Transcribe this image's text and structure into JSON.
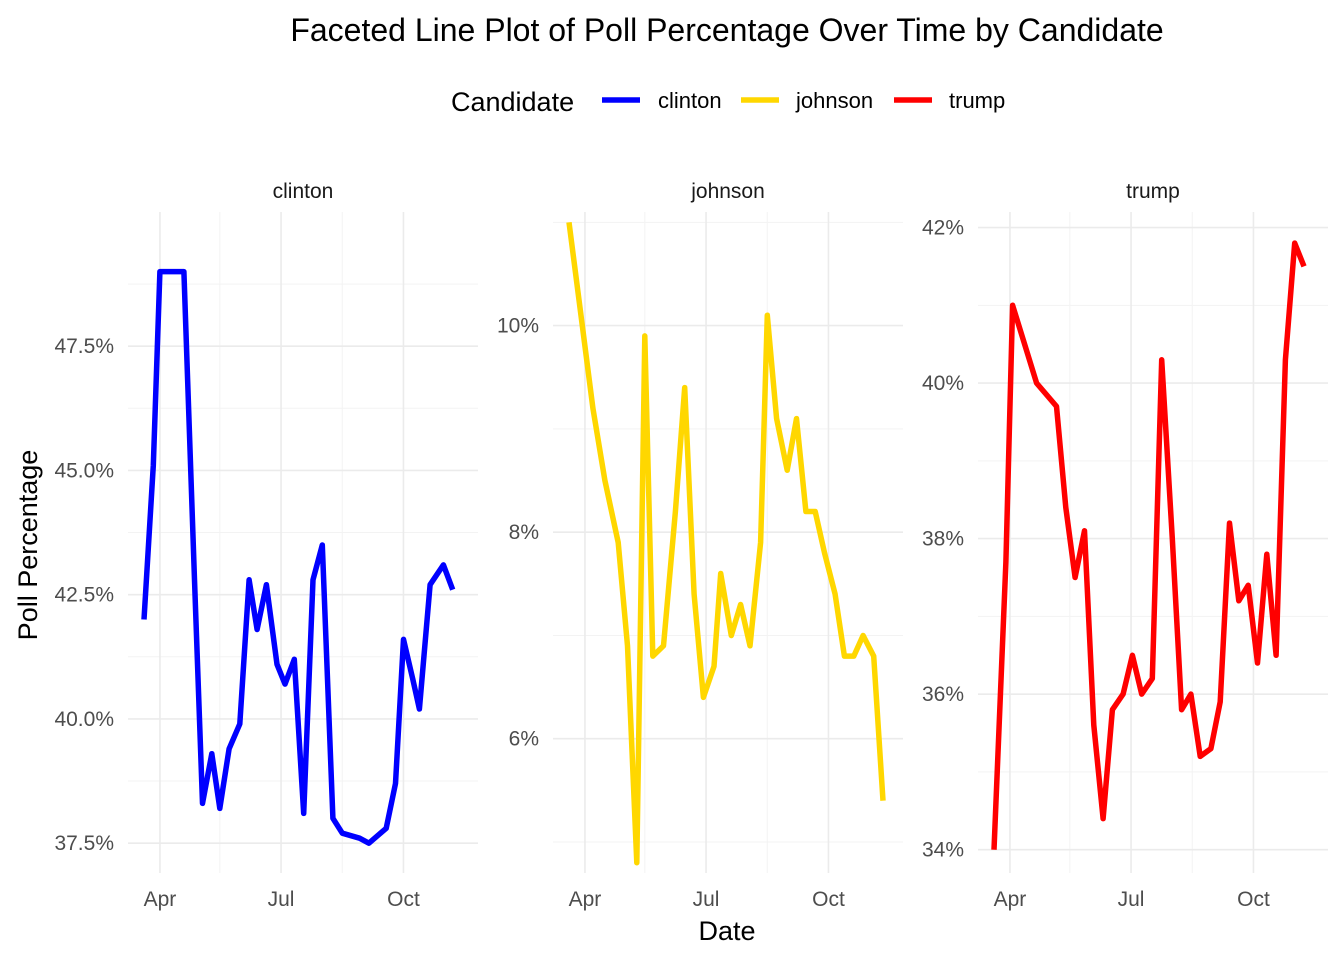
{
  "chart_data": {
    "type": "line",
    "title": "Faceted Line Plot of Poll Percentage Over Time by Candidate",
    "xlabel": "Date",
    "ylabel": "Poll Percentage",
    "legend": {
      "title": "Candidate",
      "placement": "top",
      "entries": [
        {
          "label": "clinton",
          "color": "#0000ff"
        },
        {
          "label": "johnson",
          "color": "#ffd700"
        },
        {
          "label": "trump",
          "color": "#ff0000"
        }
      ]
    },
    "x_range": [
      "2016-03-08",
      "2016-11-26"
    ],
    "x_ticks": [
      {
        "date": "2016-04-01",
        "label": "Apr"
      },
      {
        "date": "2016-07-01",
        "label": "Jul"
      },
      {
        "date": "2016-10-01",
        "label": "Oct"
      }
    ],
    "grid": true,
    "facets": [
      {
        "name": "clinton",
        "color": "#0000ff",
        "ylim": [
          36.9,
          50.2
        ],
        "y_ticks": [
          {
            "value": 37.5,
            "label": "37.5%"
          },
          {
            "value": 40.0,
            "label": "40.0%"
          },
          {
            "value": 42.5,
            "label": "42.5%"
          },
          {
            "value": 45.0,
            "label": "45.0%"
          },
          {
            "value": 47.5,
            "label": "47.5%"
          }
        ],
        "points": [
          [
            "2016-03-20",
            42.0
          ],
          [
            "2016-03-27",
            45.1
          ],
          [
            "2016-04-01",
            49.0
          ],
          [
            "2016-04-11",
            49.0
          ],
          [
            "2016-04-19",
            49.0
          ],
          [
            "2016-04-27",
            42.8
          ],
          [
            "2016-05-03",
            38.3
          ],
          [
            "2016-05-10",
            39.3
          ],
          [
            "2016-05-16",
            38.2
          ],
          [
            "2016-05-23",
            39.4
          ],
          [
            "2016-05-31",
            39.9
          ],
          [
            "2016-06-07",
            42.8
          ],
          [
            "2016-06-13",
            41.8
          ],
          [
            "2016-06-20",
            42.7
          ],
          [
            "2016-06-28",
            41.1
          ],
          [
            "2016-07-04",
            40.7
          ],
          [
            "2016-07-11",
            41.2
          ],
          [
            "2016-07-18",
            38.1
          ],
          [
            "2016-07-25",
            42.8
          ],
          [
            "2016-08-01",
            43.5
          ],
          [
            "2016-08-09",
            38.0
          ],
          [
            "2016-08-16",
            37.7
          ],
          [
            "2016-08-29",
            37.6
          ],
          [
            "2016-09-05",
            37.5
          ],
          [
            "2016-09-18",
            37.8
          ],
          [
            "2016-09-25",
            38.7
          ],
          [
            "2016-10-01",
            41.6
          ],
          [
            "2016-10-08",
            40.8
          ],
          [
            "2016-10-13",
            40.2
          ],
          [
            "2016-10-21",
            42.7
          ],
          [
            "2016-10-31",
            43.1
          ],
          [
            "2016-11-07",
            42.6
          ]
        ]
      },
      {
        "name": "johnson",
        "color": "#ffd700",
        "ylim": [
          4.7,
          11.1
        ],
        "y_ticks": [
          {
            "value": 6,
            "label": "6%"
          },
          {
            "value": 8,
            "label": "8%"
          },
          {
            "value": 10,
            "label": "10%"
          }
        ],
        "points": [
          [
            "2016-03-20",
            11.0
          ],
          [
            "2016-03-30",
            10.0
          ],
          [
            "2016-04-07",
            9.2
          ],
          [
            "2016-04-16",
            8.5
          ],
          [
            "2016-04-26",
            7.9
          ],
          [
            "2016-05-03",
            6.9
          ],
          [
            "2016-05-10",
            4.8
          ],
          [
            "2016-05-16",
            9.9
          ],
          [
            "2016-05-22",
            6.8
          ],
          [
            "2016-05-30",
            6.9
          ],
          [
            "2016-06-08",
            8.2
          ],
          [
            "2016-06-15",
            9.4
          ],
          [
            "2016-06-22",
            7.4
          ],
          [
            "2016-06-29",
            6.4
          ],
          [
            "2016-07-07",
            6.7
          ],
          [
            "2016-07-12",
            7.6
          ],
          [
            "2016-07-20",
            7.0
          ],
          [
            "2016-07-27",
            7.3
          ],
          [
            "2016-08-03",
            6.9
          ],
          [
            "2016-08-11",
            7.9
          ],
          [
            "2016-08-16",
            10.1
          ],
          [
            "2016-08-23",
            9.1
          ],
          [
            "2016-08-31",
            8.6
          ],
          [
            "2016-09-07",
            9.1
          ],
          [
            "2016-09-14",
            8.2
          ],
          [
            "2016-09-21",
            8.2
          ],
          [
            "2016-09-28",
            7.8
          ],
          [
            "2016-10-06",
            7.4
          ],
          [
            "2016-10-13",
            6.8
          ],
          [
            "2016-10-20",
            6.8
          ],
          [
            "2016-10-27",
            7.0
          ],
          [
            "2016-11-04",
            6.8
          ],
          [
            "2016-11-11",
            5.4
          ]
        ]
      },
      {
        "name": "trump",
        "color": "#ff0000",
        "ylim": [
          33.7,
          42.2
        ],
        "y_ticks": [
          {
            "value": 34,
            "label": "34%"
          },
          {
            "value": 36,
            "label": "36%"
          },
          {
            "value": 38,
            "label": "38%"
          },
          {
            "value": 40,
            "label": "40%"
          },
          {
            "value": 42,
            "label": "42%"
          }
        ],
        "points": [
          [
            "2016-03-20",
            34.0
          ],
          [
            "2016-03-29",
            37.7
          ],
          [
            "2016-04-03",
            41.0
          ],
          [
            "2016-04-12",
            40.5
          ],
          [
            "2016-04-21",
            40.0
          ],
          [
            "2016-05-06",
            39.7
          ],
          [
            "2016-05-13",
            38.4
          ],
          [
            "2016-05-20",
            37.5
          ],
          [
            "2016-05-27",
            38.1
          ],
          [
            "2016-06-03",
            35.6
          ],
          [
            "2016-06-10",
            34.4
          ],
          [
            "2016-06-17",
            35.8
          ],
          [
            "2016-06-25",
            36.0
          ],
          [
            "2016-07-02",
            36.5
          ],
          [
            "2016-07-09",
            36.0
          ],
          [
            "2016-07-17",
            36.2
          ],
          [
            "2016-07-24",
            40.3
          ],
          [
            "2016-08-01",
            38.0
          ],
          [
            "2016-08-08",
            35.8
          ],
          [
            "2016-08-15",
            36.0
          ],
          [
            "2016-08-22",
            35.2
          ],
          [
            "2016-08-30",
            35.3
          ],
          [
            "2016-09-06",
            35.9
          ],
          [
            "2016-09-13",
            38.2
          ],
          [
            "2016-09-20",
            37.2
          ],
          [
            "2016-09-27",
            37.4
          ],
          [
            "2016-10-04",
            36.4
          ],
          [
            "2016-10-11",
            37.8
          ],
          [
            "2016-10-18",
            36.5
          ],
          [
            "2016-10-25",
            40.3
          ],
          [
            "2016-11-01",
            41.8
          ],
          [
            "2016-11-08",
            41.5
          ]
        ]
      }
    ]
  }
}
